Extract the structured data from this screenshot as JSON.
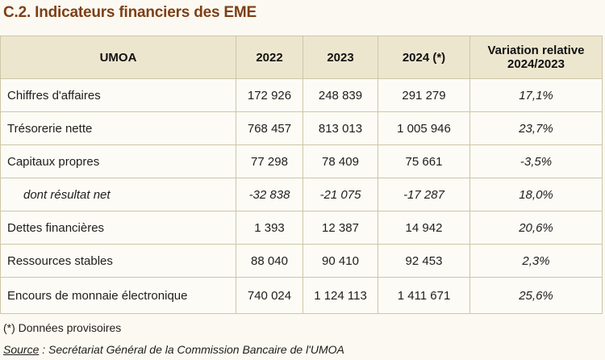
{
  "title": "C.2. Indicateurs financiers des EME",
  "table": {
    "headers": [
      "UMOA",
      "2022",
      "2023",
      "2024 (*)",
      "Variation relative",
      "2024/2023"
    ],
    "rows": [
      {
        "label": "Chiffres d'affaires",
        "v2022": "172 926",
        "v2023": "248 839",
        "v2024": "291 279",
        "variation": "17,1%"
      },
      {
        "label": "Trésorerie nette",
        "v2022": "768 457",
        "v2023": "813 013",
        "v2024": "1 005 946",
        "variation": "23,7%"
      },
      {
        "label": "Capitaux propres",
        "v2022": "77 298",
        "v2023": "78 409",
        "v2024": "75 661",
        "variation": "-3,5%"
      },
      {
        "label": "dont résultat net",
        "v2022": "-32 838",
        "v2023": "-21 075",
        "v2024": "-17 287",
        "variation": "18,0%"
      },
      {
        "label": "Dettes financières",
        "v2022": "1 393",
        "v2023": "12 387",
        "v2024": "14 942",
        "variation": "20,6%"
      },
      {
        "label": "Ressources stables",
        "v2022": "88 040",
        "v2023": "90 410",
        "v2024": "92 453",
        "variation": "2,3%"
      },
      {
        "label": "Encours de monnaie électronique",
        "v2022": "740 024",
        "v2023": "1 124 113",
        "v2024": "1 411 671",
        "variation": "25,6%"
      }
    ]
  },
  "footnote": "(*) Données provisoires",
  "source": {
    "label": "Source",
    "text": " : Secrétariat Général de la Commission Bancaire de l'UMOA"
  },
  "colors": {
    "title": "#7e3f17",
    "header_bg": "#ede6cf",
    "border": "#cfc6a8"
  }
}
